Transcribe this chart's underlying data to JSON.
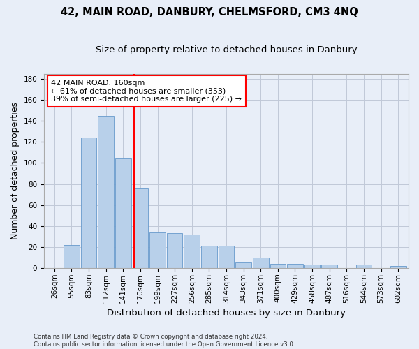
{
  "title": "42, MAIN ROAD, DANBURY, CHELMSFORD, CM3 4NQ",
  "subtitle": "Size of property relative to detached houses in Danbury",
  "xlabel": "Distribution of detached houses by size in Danbury",
  "ylabel": "Number of detached properties",
  "footnote1": "Contains HM Land Registry data © Crown copyright and database right 2024.",
  "footnote2": "Contains public sector information licensed under the Open Government Licence v3.0.",
  "bin_labels": [
    "26sqm",
    "55sqm",
    "83sqm",
    "112sqm",
    "141sqm",
    "170sqm",
    "199sqm",
    "227sqm",
    "256sqm",
    "285sqm",
    "314sqm",
    "343sqm",
    "371sqm",
    "400sqm",
    "429sqm",
    "458sqm",
    "487sqm",
    "516sqm",
    "544sqm",
    "573sqm",
    "602sqm"
  ],
  "bar_heights": [
    0,
    22,
    124,
    145,
    104,
    76,
    34,
    33,
    32,
    21,
    21,
    5,
    10,
    4,
    4,
    3,
    3,
    0,
    3,
    0,
    2
  ],
  "bar_color": "#b8d0ea",
  "bar_edge_color": "#6699cc",
  "annotation_lines": [
    "42 MAIN ROAD: 160sqm",
    "← 61% of detached houses are smaller (353)",
    "39% of semi-detached houses are larger (225) →"
  ],
  "ylim": [
    0,
    185
  ],
  "yticks": [
    0,
    20,
    40,
    60,
    80,
    100,
    120,
    140,
    160,
    180
  ],
  "background_color": "#e8eef8",
  "grid_color": "#c0c8d8",
  "title_fontsize": 10.5,
  "subtitle_fontsize": 9.5,
  "axis_label_fontsize": 9,
  "tick_fontsize": 7.5,
  "annotation_fontsize": 8
}
